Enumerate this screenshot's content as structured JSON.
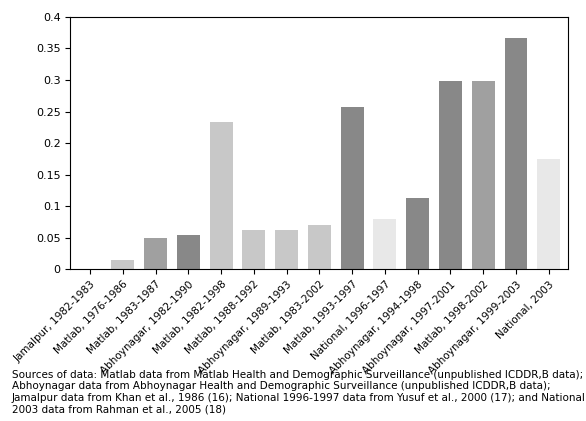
{
  "chart_data": {
    "type": "bar",
    "categories": [
      "Jamalpur, 1982-1983",
      "Matlab, 1976-1986",
      "Matlab, 1983-1987",
      "Abhoynagar, 1982-1990",
      "Matlab, 1982-1998",
      "Matlab, 1988-1992",
      "Abhoynagar, 1989-1993",
      "Matlab, 1983-2002",
      "Matlab, 1993-1997",
      "National, 1996-1997",
      "Abhoynagar, 1994-1998",
      "Abhoynagar, 1997-2001",
      "Matlab, 1998-2002",
      "Abhoynagar, 1999-2003",
      "National, 2003"
    ],
    "values": [
      0.0,
      0.015,
      0.05,
      0.055,
      0.233,
      0.062,
      0.063,
      0.07,
      0.258,
      0.08,
      0.113,
      0.299,
      0.299,
      0.367,
      0.175
    ],
    "colors": [
      "#c8c8c8",
      "#c8c8c8",
      "#a0a0a0",
      "#888888",
      "#c8c8c8",
      "#c8c8c8",
      "#c8c8c8",
      "#c8c8c8",
      "#888888",
      "#e8e8e8",
      "#888888",
      "#888888",
      "#a0a0a0",
      "#888888",
      "#e8e8e8"
    ],
    "ylim": [
      0,
      0.4
    ],
    "yticks": [
      0,
      0.05,
      0.1,
      0.15,
      0.2,
      0.25,
      0.3,
      0.35,
      0.4
    ],
    "grid": false,
    "annotations": [
      "Sources of data: Matlab data from Matlab Health and Demographic Surveillance (unpublished ICDDR,B data); Abhoynagar data from Abhoynagar Health and Demographic Surveillance (unpublished ICDDR,B data); Jamalpur data from Khan et al., 1986 (16); National 1996-1997 data from Yusuf et al., 2000 (17); and National 2003 data from Rahman et al., 2005 (18)"
    ]
  }
}
